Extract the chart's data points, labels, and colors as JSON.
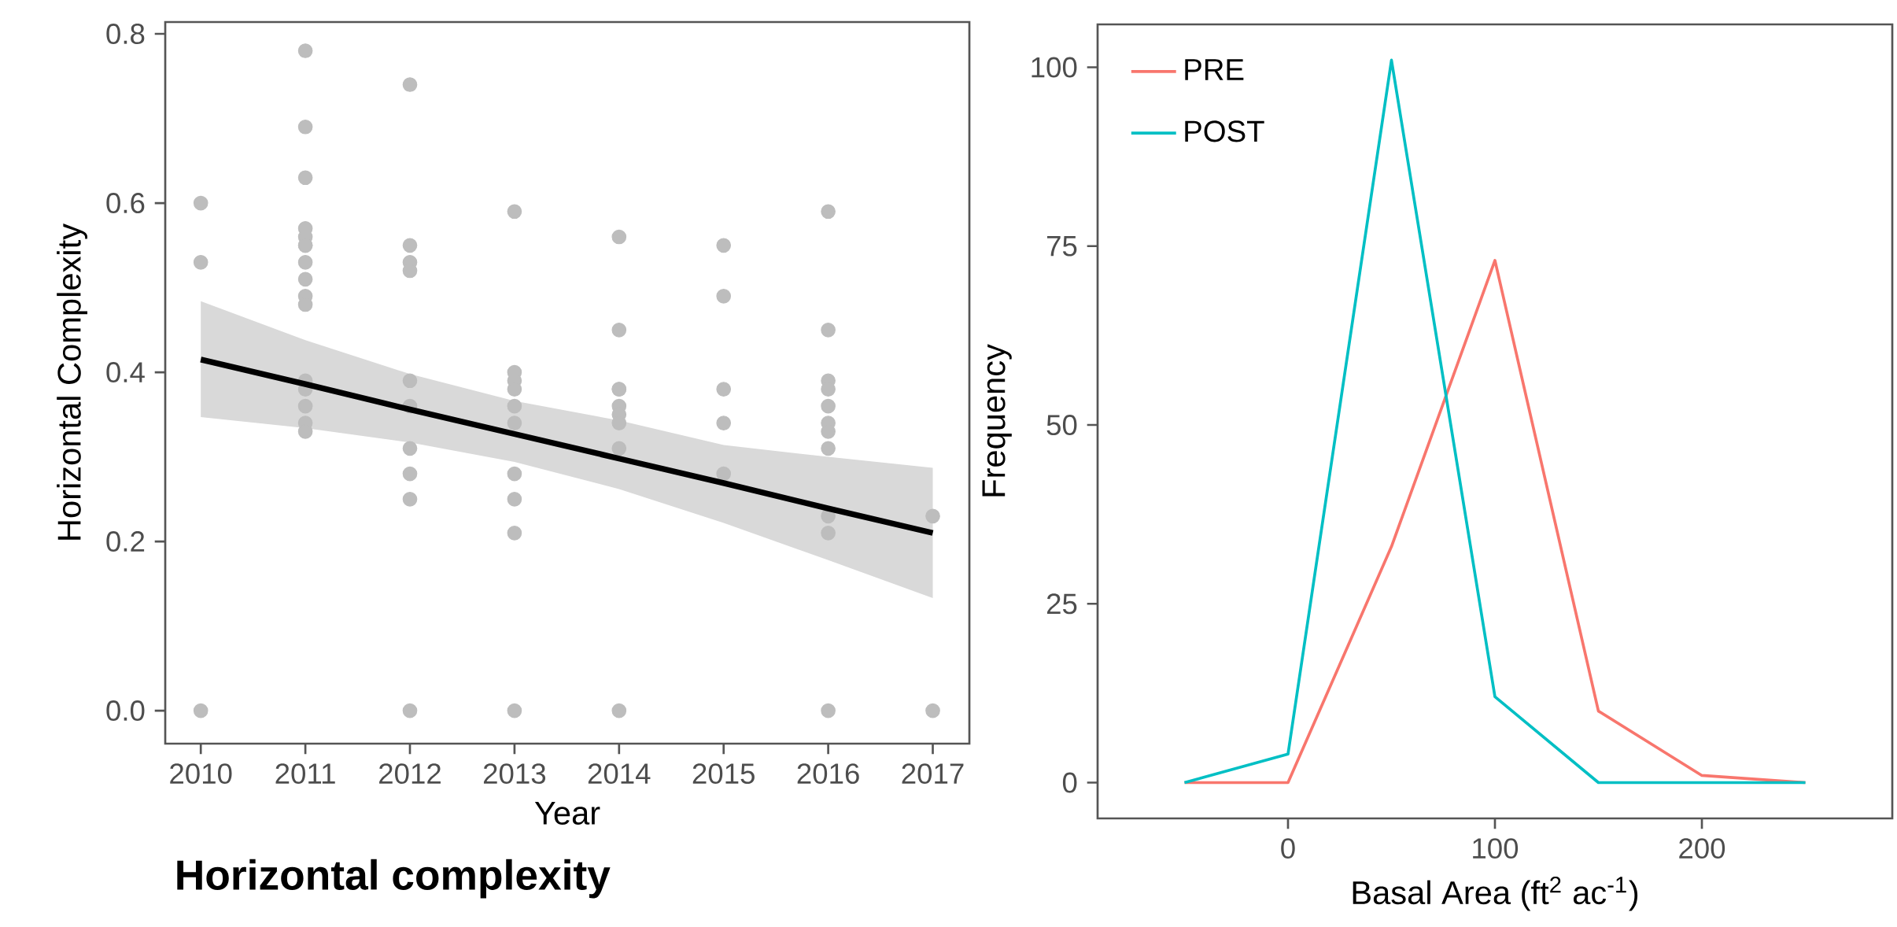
{
  "chart_data": [
    {
      "type": "scatter",
      "xlabel": "Year",
      "ylabel": "Horizontal Complexity",
      "annotations": [
        "Horizontal complexity"
      ],
      "xlim": [
        2009.66,
        2017.35
      ],
      "ylim": [
        -0.039,
        0.814
      ],
      "xticks": [
        2010,
        2011,
        2012,
        2013,
        2014,
        2015,
        2016,
        2017
      ],
      "yticks": [
        {
          "value": 0,
          "label": "0.0"
        },
        0.2,
        0.4,
        0.6,
        0.8
      ],
      "series": [
        {
          "type": "scatter",
          "color": "#bdbdbd",
          "x": [
            2010,
            2010,
            2010,
            2011,
            2011,
            2011,
            2011,
            2011,
            2011,
            2011,
            2011,
            2011,
            2011,
            2011,
            2011,
            2011,
            2011,
            2011,
            2011,
            2012,
            2012,
            2012,
            2012,
            2012,
            2012,
            2012,
            2012,
            2012,
            2012,
            2013,
            2013,
            2013,
            2013,
            2013,
            2013,
            2013,
            2013,
            2013,
            2013,
            2014,
            2014,
            2014,
            2014,
            2014,
            2014,
            2014,
            2014,
            2014,
            2015,
            2015,
            2015,
            2015,
            2015,
            2016,
            2016,
            2016,
            2016,
            2016,
            2016,
            2016,
            2016,
            2016,
            2016,
            2016,
            2017,
            2017
          ],
          "values": [
            0.6,
            0.53,
            0,
            0.78,
            0.69,
            0.63,
            0.57,
            0.56,
            0.55,
            0.55,
            0.53,
            0.51,
            0.49,
            0.48,
            0.39,
            0.38,
            0.36,
            0.34,
            0.33,
            0.74,
            0.55,
            0.53,
            0.52,
            0.39,
            0.36,
            0.31,
            0.28,
            0.25,
            0,
            0.59,
            0.4,
            0.39,
            0.38,
            0.36,
            0.34,
            0.28,
            0.25,
            0.21,
            0,
            0.56,
            0.45,
            0.38,
            0.38,
            0.36,
            0.35,
            0.34,
            0.31,
            0,
            0.55,
            0.49,
            0.38,
            0.34,
            0.28,
            0.59,
            0.45,
            0.39,
            0.38,
            0.36,
            0.34,
            0.33,
            0.31,
            0.23,
            0.21,
            0,
            0.23,
            0
          ]
        },
        {
          "type": "line",
          "color": "#000000",
          "x": [
            2010,
            2011,
            2012,
            2013,
            2014,
            2015,
            2016,
            2017
          ],
          "values": [
            0.415,
            0.386,
            0.356,
            0.327,
            0.298,
            0.269,
            0.239,
            0.21
          ],
          "lower": [
            0.347,
            0.334,
            0.317,
            0.294,
            0.262,
            0.222,
            0.178,
            0.133
          ],
          "upper": [
            0.484,
            0.438,
            0.398,
            0.366,
            0.343,
            0.314,
            0.3,
            0.287
          ]
        }
      ]
    },
    {
      "type": "line",
      "xlabel": "Basal Area (ft$^{2}$ ac$^{-1}$)",
      "ylabel": "Frequency",
      "xlim": [
        -92,
        292
      ],
      "ylim": [
        -5,
        106
      ],
      "xticks": [
        0,
        100,
        200
      ],
      "yticks": [
        0,
        25,
        50,
        75,
        100
      ],
      "legend": "top left",
      "series": [
        {
          "name": "PRE",
          "color": "#f8766d",
          "x": [
            -50,
            0,
            50,
            100,
            150,
            200,
            250
          ],
          "values": [
            0,
            0,
            33,
            73,
            10,
            1,
            0
          ]
        },
        {
          "name": "POST",
          "color": "#00bfc4",
          "x": [
            -50,
            0,
            50,
            100,
            150,
            200,
            250
          ],
          "values": [
            0,
            4,
            101,
            12,
            0,
            0,
            0
          ]
        }
      ]
    }
  ]
}
